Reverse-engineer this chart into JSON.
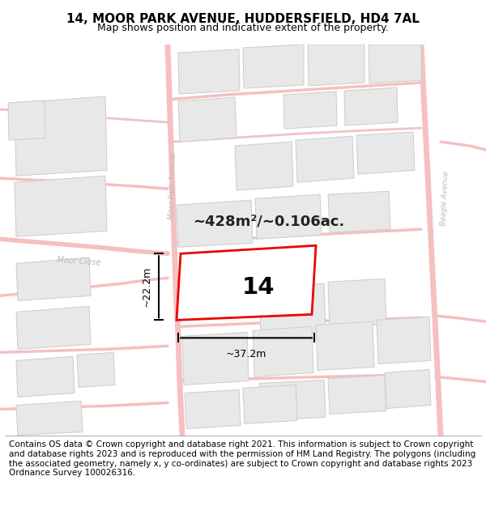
{
  "title": "14, MOOR PARK AVENUE, HUDDERSFIELD, HD4 7AL",
  "subtitle": "Map shows position and indicative extent of the property.",
  "footer": "Contains OS data © Crown copyright and database right 2021. This information is subject to Crown copyright and database rights 2023 and is reproduced with the permission of HM Land Registry. The polygons (including the associated geometry, namely x, y co-ordinates) are subject to Crown copyright and database rights 2023 Ordnance Survey 100026316.",
  "area_text": "~428m²/~0.106ac.",
  "label_14": "14",
  "dim_width": "~37.2m",
  "dim_height": "~22.2m",
  "plot_outline_color": "#ee0000",
  "road_color": "#f5c0c0",
  "road_lw": 3,
  "building_fill": "#e8e8e8",
  "building_outline": "#cccccc",
  "road_label_color": "#bbbbbb",
  "title_fontsize": 11,
  "subtitle_fontsize": 9,
  "footer_fontsize": 7.5,
  "map_bg": "#fafafa"
}
